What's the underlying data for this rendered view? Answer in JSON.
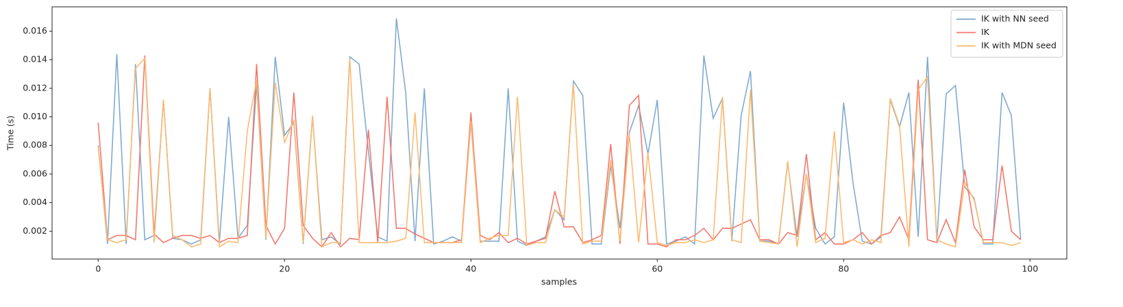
{
  "chart_data": {
    "type": "line",
    "xlabel": "samples",
    "ylabel": "Time (s)",
    "x": [
      0,
      1,
      2,
      3,
      4,
      5,
      6,
      7,
      8,
      9,
      10,
      11,
      12,
      13,
      14,
      15,
      16,
      17,
      18,
      19,
      20,
      21,
      22,
      23,
      24,
      25,
      26,
      27,
      28,
      29,
      30,
      31,
      32,
      33,
      34,
      35,
      36,
      37,
      38,
      39,
      40,
      41,
      42,
      43,
      44,
      45,
      46,
      47,
      48,
      49,
      50,
      51,
      52,
      53,
      54,
      55,
      56,
      57,
      58,
      59,
      60,
      61,
      62,
      63,
      64,
      65,
      66,
      67,
      68,
      69,
      70,
      71,
      72,
      73,
      74,
      75,
      76,
      77,
      78,
      79,
      80,
      81,
      82,
      83,
      84,
      85,
      86,
      87,
      88,
      89,
      90,
      91,
      92,
      93,
      94,
      95,
      96,
      97,
      98,
      99
    ],
    "series": [
      {
        "name": "IK with NN seed",
        "color": "#7faacf",
        "values": [
          0.008,
          0.0011,
          0.0144,
          0.0011,
          0.0137,
          0.0014,
          0.0017,
          0.0112,
          0.0015,
          0.0014,
          0.0011,
          0.0014,
          0.012,
          0.0012,
          0.01,
          0.0015,
          0.0024,
          0.0123,
          0.0014,
          0.0142,
          0.0087,
          0.0096,
          0.0011,
          0.01,
          0.0014,
          0.0016,
          0.0011,
          0.0142,
          0.0137,
          0.0076,
          0.0016,
          0.0013,
          0.0169,
          0.0117,
          0.0013,
          0.012,
          0.0011,
          0.0013,
          0.0016,
          0.0013,
          0.0096,
          0.0013,
          0.0013,
          0.0013,
          0.012,
          0.0013,
          0.001,
          0.0013,
          0.0016,
          0.0035,
          0.0028,
          0.0125,
          0.0115,
          0.0011,
          0.0011,
          0.0066,
          0.0022,
          0.0089,
          0.0108,
          0.0074,
          0.0112,
          0.0011,
          0.0013,
          0.0016,
          0.0011,
          0.0143,
          0.0099,
          0.0113,
          0.0013,
          0.0101,
          0.0132,
          0.0013,
          0.0013,
          0.0011,
          0.0068,
          0.0016,
          0.006,
          0.0022,
          0.0011,
          0.0016,
          0.011,
          0.0054,
          0.0013,
          0.0011,
          0.0016,
          0.0112,
          0.0093,
          0.0117,
          0.0016,
          0.0142,
          0.0013,
          0.0116,
          0.0122,
          0.0051,
          0.0043,
          0.0011,
          0.0011,
          0.0117,
          0.0101,
          0.0014
        ]
      },
      {
        "name": "IK",
        "color": "#f4776b",
        "values": [
          0.0096,
          0.0014,
          0.0017,
          0.0017,
          0.0014,
          0.0143,
          0.0018,
          0.0012,
          0.0015,
          0.0017,
          0.0017,
          0.0015,
          0.0017,
          0.0012,
          0.0015,
          0.0015,
          0.0017,
          0.0137,
          0.0024,
          0.0011,
          0.0022,
          0.0117,
          0.0024,
          0.0015,
          0.0009,
          0.0019,
          0.0009,
          0.0015,
          0.0014,
          0.0091,
          0.0012,
          0.0114,
          0.0022,
          0.0022,
          0.0018,
          0.0015,
          0.0012,
          0.0012,
          0.0012,
          0.0014,
          0.0103,
          0.0017,
          0.0014,
          0.0019,
          0.0012,
          0.0015,
          0.0011,
          0.0013,
          0.0015,
          0.0048,
          0.0023,
          0.0023,
          0.0012,
          0.0014,
          0.0017,
          0.0081,
          0.0011,
          0.0108,
          0.0115,
          0.0011,
          0.0011,
          0.0009,
          0.0014,
          0.0014,
          0.0017,
          0.0022,
          0.0014,
          0.0022,
          0.0022,
          0.0025,
          0.0028,
          0.0014,
          0.0014,
          0.0011,
          0.0019,
          0.0017,
          0.0074,
          0.0014,
          0.0019,
          0.0011,
          0.0011,
          0.0014,
          0.0019,
          0.0011,
          0.0017,
          0.0019,
          0.003,
          0.0014,
          0.0126,
          0.0014,
          0.0012,
          0.0028,
          0.0012,
          0.0063,
          0.0023,
          0.0014,
          0.0014,
          0.0066,
          0.002,
          0.0014
        ]
      },
      {
        "name": "IK with MDN seed",
        "color": "#fdba6f",
        "values": [
          0.0079,
          0.0014,
          0.0012,
          0.0014,
          0.0134,
          0.0141,
          0.0012,
          0.0112,
          0.0017,
          0.0014,
          0.0009,
          0.0011,
          0.012,
          0.0009,
          0.0013,
          0.0012,
          0.009,
          0.0126,
          0.0015,
          0.0124,
          0.0082,
          0.0098,
          0.0012,
          0.0101,
          0.0009,
          0.0012,
          0.0012,
          0.0141,
          0.0012,
          0.0012,
          0.0012,
          0.0012,
          0.0013,
          0.0015,
          0.0103,
          0.0012,
          0.0012,
          0.0012,
          0.0012,
          0.0012,
          0.0097,
          0.0012,
          0.0015,
          0.0017,
          0.0017,
          0.0114,
          0.001,
          0.0012,
          0.0012,
          0.0035,
          0.003,
          0.0123,
          0.0011,
          0.0013,
          0.0013,
          0.007,
          0.0013,
          0.0088,
          0.0012,
          0.0075,
          0.0012,
          0.001,
          0.0012,
          0.0012,
          0.0014,
          0.0012,
          0.0014,
          0.0114,
          0.0014,
          0.0012,
          0.0119,
          0.0013,
          0.0012,
          0.0011,
          0.0069,
          0.0009,
          0.006,
          0.0012,
          0.0015,
          0.009,
          0.0012,
          0.0014,
          0.0011,
          0.0014,
          0.0012,
          0.0113,
          0.0094,
          0.0009,
          0.0119,
          0.0128,
          0.0014,
          0.0011,
          0.0009,
          0.0054,
          0.0042,
          0.0012,
          0.0012,
          0.0012,
          0.001,
          0.0012
        ]
      }
    ],
    "xlim": [
      -4.95,
      103.95
    ],
    "ylim": [
      5e-05,
      0.0177
    ],
    "xticks": [
      0,
      20,
      40,
      60,
      80,
      100
    ],
    "yticks": [
      {
        "value": 0.002,
        "label": "0.002"
      },
      {
        "value": 0.004,
        "label": "0.004"
      },
      {
        "value": 0.006,
        "label": "0.006"
      },
      {
        "value": 0.008,
        "label": "0.008"
      },
      {
        "value": 0.01,
        "label": "0.010"
      },
      {
        "value": 0.012,
        "label": "0.012"
      },
      {
        "value": 0.014,
        "label": "0.014"
      },
      {
        "value": 0.016,
        "label": "0.016"
      }
    ],
    "legend": "upper right"
  }
}
